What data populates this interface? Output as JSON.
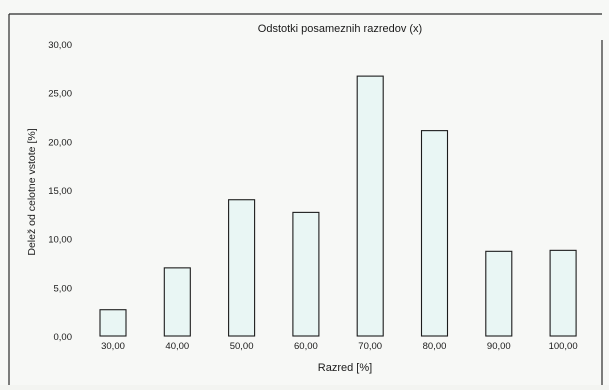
{
  "chart_data": {
    "type": "bar",
    "title": "Odstotki posameznih razredov (x)",
    "xlabel": "Razred [%]",
    "ylabel": "Delež od celotne vstote [%]",
    "categories": [
      "30,00",
      "40,00",
      "50,00",
      "60,00",
      "70,00",
      "80,00",
      "90,00",
      "100,00"
    ],
    "values": [
      2.7,
      7.0,
      14.0,
      12.7,
      26.7,
      21.1,
      8.7,
      8.8
    ],
    "ylim": [
      0,
      30
    ],
    "yticks": [
      "0,00",
      "5,00",
      "10,00",
      "15,00",
      "20,00",
      "25,00",
      "30,00"
    ],
    "grid": false,
    "legend": "none",
    "colors": {
      "bar_fill": "#e9f6f4",
      "bar_stroke": "#1c1c1c",
      "axis": "#2a2a2a"
    }
  }
}
